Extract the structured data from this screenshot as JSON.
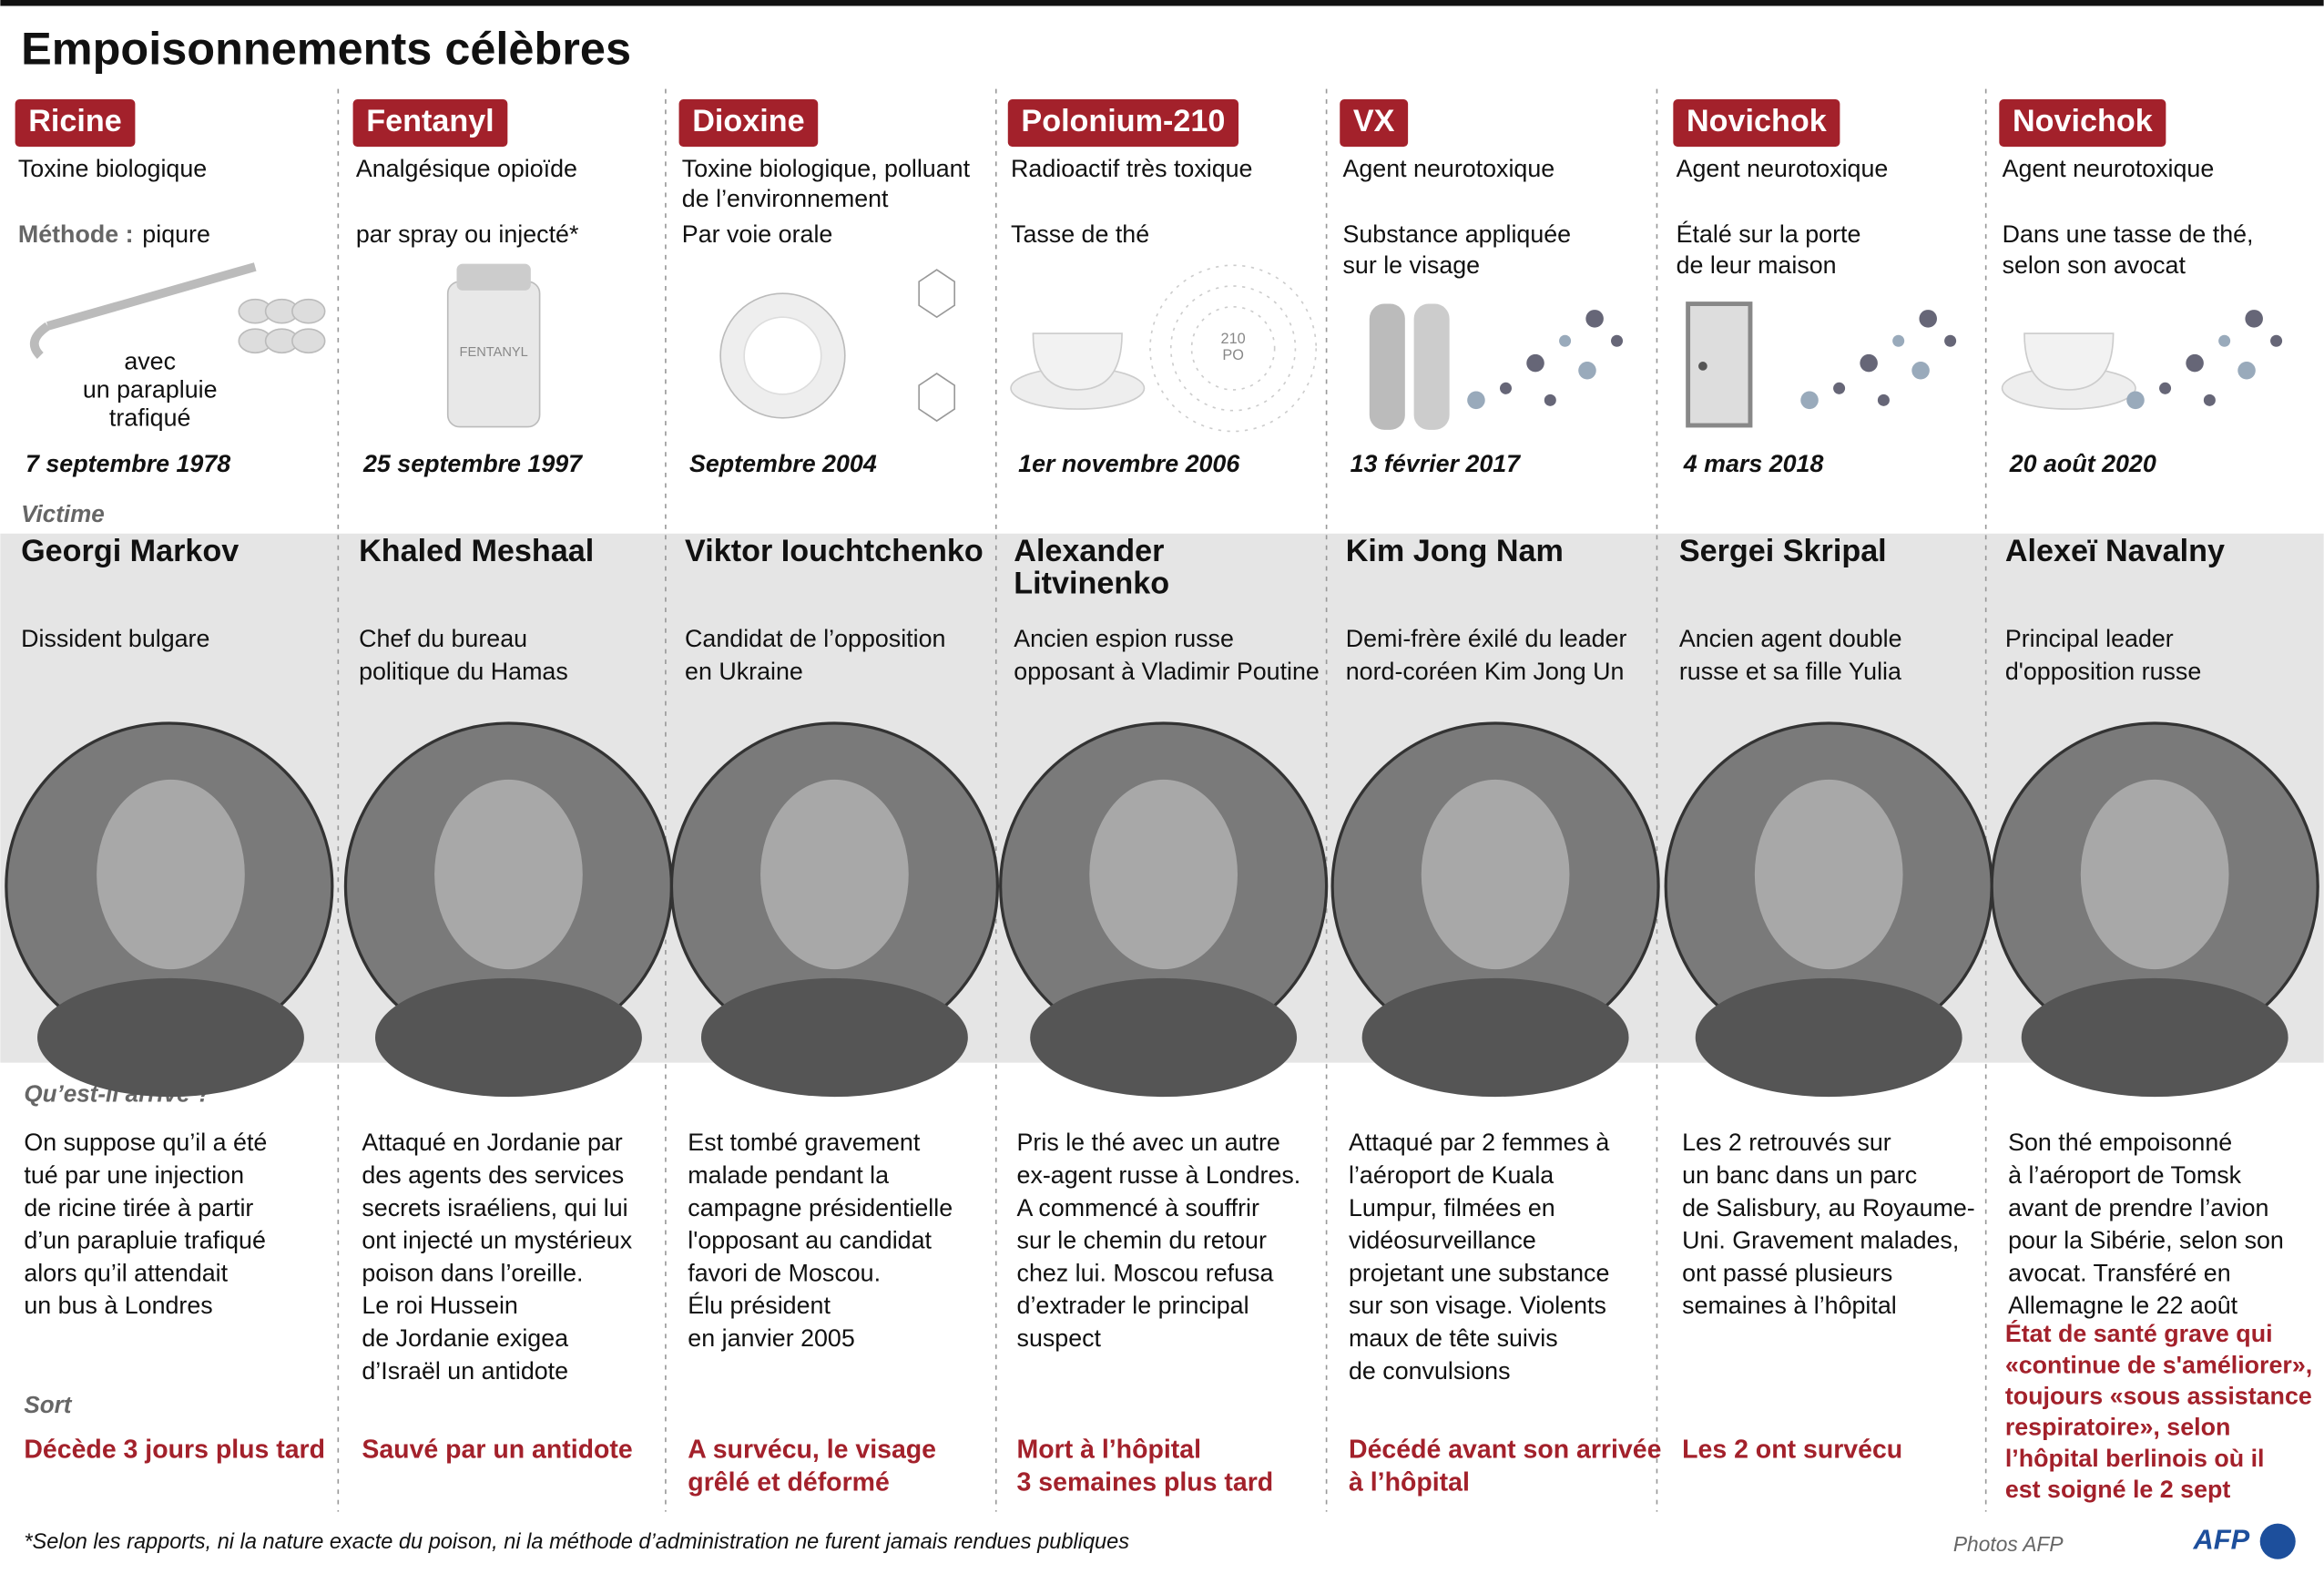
{
  "header": {
    "title": "Empoisonnements célèbres"
  },
  "labels": {
    "method": "Méthode :",
    "victim": "Victime",
    "what": "Qu’est-il arrivé ?",
    "fate": "Sort"
  },
  "columns": [
    {
      "poison": "Ricine",
      "type": [
        "Toxine biologique"
      ],
      "method": [
        "piqure"
      ],
      "caption": [
        "avec",
        "un parapluie",
        "trafiqué"
      ],
      "date": "7 septembre 1978",
      "name": [
        "Georgi Markov"
      ],
      "description": [
        "Dissident bulgare"
      ],
      "story": [
        "On suppose qu’il a été",
        "tué par une injection",
        "de ricine tirée à partir",
        "d’un parapluie trafiqué",
        "alors qu’il attendait",
        "un bus à Londres"
      ],
      "outcome": [
        "Décède 3 jours plus tard"
      ]
    },
    {
      "poison": "Fentanyl",
      "type": [
        "Analgésique opioïde"
      ],
      "method": [
        "par spray ou injecté*"
      ],
      "caption": [
        "FENTANYL"
      ],
      "date": "25 septembre 1997",
      "name": [
        "Khaled Meshaal"
      ],
      "description": [
        "Chef du bureau",
        "politique du Hamas"
      ],
      "story": [
        "Attaqué en Jordanie par",
        "des agents des services",
        "secrets israéliens, qui lui",
        "ont injecté un mystérieux",
        "poison dans l’oreille.",
        "Le roi Hussein",
        "de Jordanie exigea",
        "d’Israël un antidote"
      ],
      "outcome": [
        "Sauvé par un antidote"
      ]
    },
    {
      "poison": "Dioxine",
      "type": [
        "Toxine biologique, polluant",
        "de l’environnement"
      ],
      "method": [
        "Par voie orale"
      ],
      "caption": [],
      "date": "Septembre 2004",
      "name": [
        "Viktor Iouchtchenko"
      ],
      "description": [
        "Candidat de l’opposition",
        "en Ukraine"
      ],
      "story": [
        "Est tombé gravement",
        "malade pendant la",
        "campagne présidentielle",
        "l'opposant au candidat",
        "favori de Moscou.",
        "Élu président",
        "en janvier 2005"
      ],
      "outcome": [
        "A survécu, le visage",
        "grêlé et déformé"
      ]
    },
    {
      "poison": "Polonium-210",
      "type": [
        "Radioactif très toxique"
      ],
      "method": [
        "Tasse de thé"
      ],
      "caption": [
        "210",
        "PO"
      ],
      "date": "1er novembre 2006",
      "name": [
        "Alexander",
        "Litvinenko"
      ],
      "description": [
        "Ancien espion russe",
        "opposant à Vladimir Poutine"
      ],
      "story": [
        "Pris le thé avec un autre",
        "ex-agent russe à Londres.",
        "A commencé à souffrir",
        "sur le chemin du retour",
        "chez lui. Moscou refusa",
        "d’extrader le principal",
        "suspect"
      ],
      "outcome": [
        "Mort à l’hôpital",
        "3 semaines plus tard"
      ]
    },
    {
      "poison": "VX",
      "type": [
        "Agent neurotoxique"
      ],
      "method": [
        "Substance appliquée",
        "sur le visage"
      ],
      "caption": [],
      "date": "13 février 2017",
      "name": [
        "Kim Jong Nam"
      ],
      "description": [
        "Demi-frère éxilé du leader",
        "nord-coréen Kim Jong Un"
      ],
      "story": [
        "Attaqué par 2 femmes à",
        "l’aéroport de Kuala",
        "Lumpur, filmées en",
        "vidéosurveillance",
        "projetant une substance",
        "sur son visage. Violents",
        "maux de tête suivis",
        "de convulsions"
      ],
      "outcome": [
        "Décédé avant son arrivée",
        "à l’hôpital"
      ]
    },
    {
      "poison": "Novichok",
      "type": [
        "Agent neurotoxique"
      ],
      "method": [
        "Étalé sur la porte",
        "de leur maison"
      ],
      "caption": [],
      "date": "4 mars 2018",
      "name": [
        "Sergei Skripal"
      ],
      "description": [
        "Ancien agent double",
        "russe et sa fille Yulia"
      ],
      "story": [
        "Les 2 retrouvés sur",
        "un banc dans un parc",
        "de Salisbury, au Royaume-",
        "Uni. Gravement malades,",
        "ont passé plusieurs",
        "semaines à l’hôpital"
      ],
      "outcome": [
        "Les 2 ont survécu"
      ]
    },
    {
      "poison": "Novichok",
      "type": [
        "Agent neurotoxique"
      ],
      "method": [
        "Dans une tasse de thé,",
        "selon son avocat"
      ],
      "caption": [],
      "date": "20 août 2020",
      "name": [
        "Alexeï Navalny"
      ],
      "description": [
        "Principal leader",
        "d'opposition russe"
      ],
      "story": [
        "Son thé empoisonné",
        "à l’aéroport de Tomsk",
        "avant de prendre l’avion",
        "pour la Sibérie, selon son",
        "avocat. Transféré en",
        "Allemagne le 22 août"
      ],
      "outcome": [
        "État de santé grave qui",
        "«continue de s'améliorer»,",
        "toujours «sous  assistance",
        "respiratoire», selon",
        "l’hôpital berlinois où il",
        "est soigné le 2 sept"
      ]
    }
  ],
  "footer": {
    "note": "*Selon les rapports, ni la nature exacte du poison, ni la méthode d’administration ne furent jamais rendues publiques",
    "credit": "Photos AFP",
    "logo": "AFP"
  }
}
